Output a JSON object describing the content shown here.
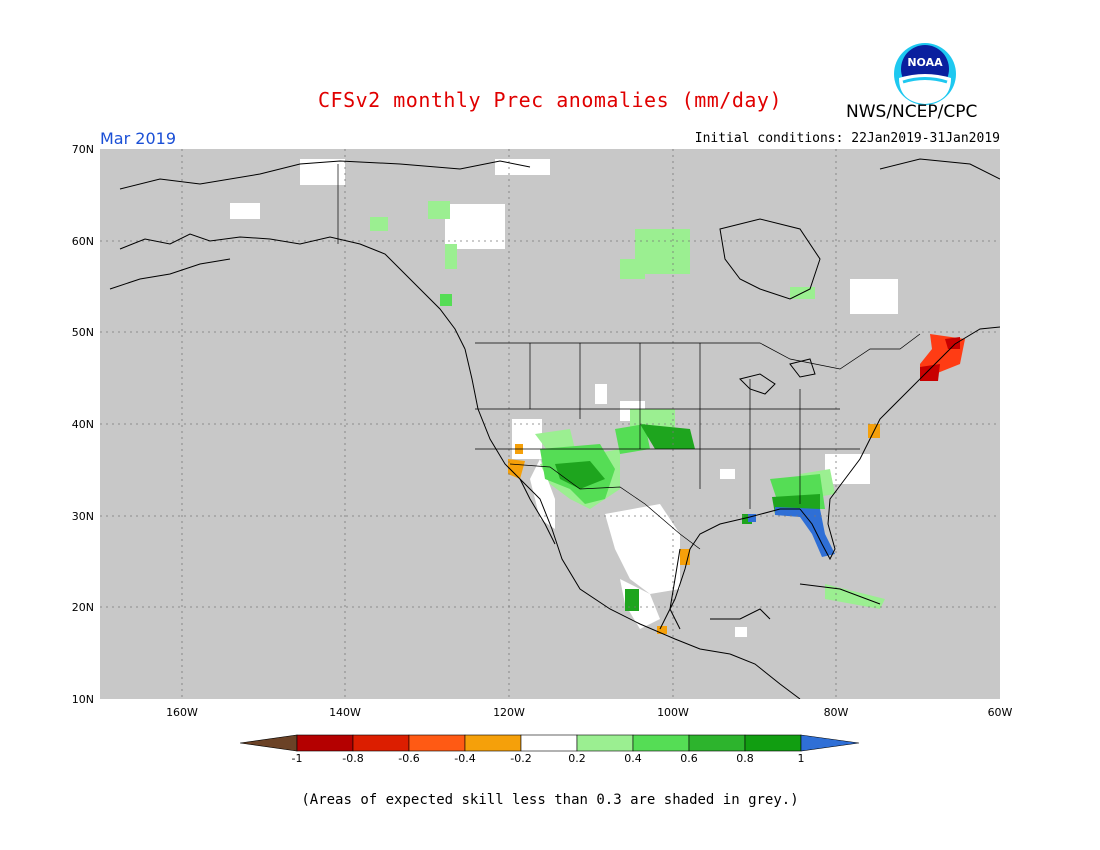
{
  "header": {
    "title": "CFSv2 monthly Prec anomalies (mm/day)",
    "agency": "NWS/NCEP/CPC",
    "logo_text": "NOAA",
    "month": "Mar 2019",
    "initial_conditions": "Initial conditions: 22Jan2019-31Jan2019"
  },
  "map": {
    "projection": "lat-lon",
    "lon_range": [
      -171,
      -60
    ],
    "lat_range": [
      10,
      70
    ],
    "background_color": "#c8c8c8",
    "gridlines": "dotted",
    "lat_labels": [
      "70N",
      "60N",
      "50N",
      "40N",
      "30N",
      "20N",
      "10N"
    ],
    "lon_labels": [
      "160W",
      "140W",
      "120W",
      "100W",
      "80W",
      "60W"
    ]
  },
  "colorbar": {
    "unit": "mm/day",
    "tick_labels": [
      "-1",
      "-0.8",
      "-0.6",
      "-0.4",
      "-0.2",
      "0.2",
      "0.4",
      "0.6",
      "0.8",
      "1"
    ],
    "colors": [
      "#6b4226",
      "#b40000",
      "#dc1e00",
      "#ff5a14",
      "#f5a00a",
      "#ffffff",
      "#9bef91",
      "#55dd55",
      "#2db42d",
      "#119e11",
      "#2f6fd6"
    ]
  },
  "footnote": "(Areas of expected skill less than 0.3 are shaded in grey.)"
}
